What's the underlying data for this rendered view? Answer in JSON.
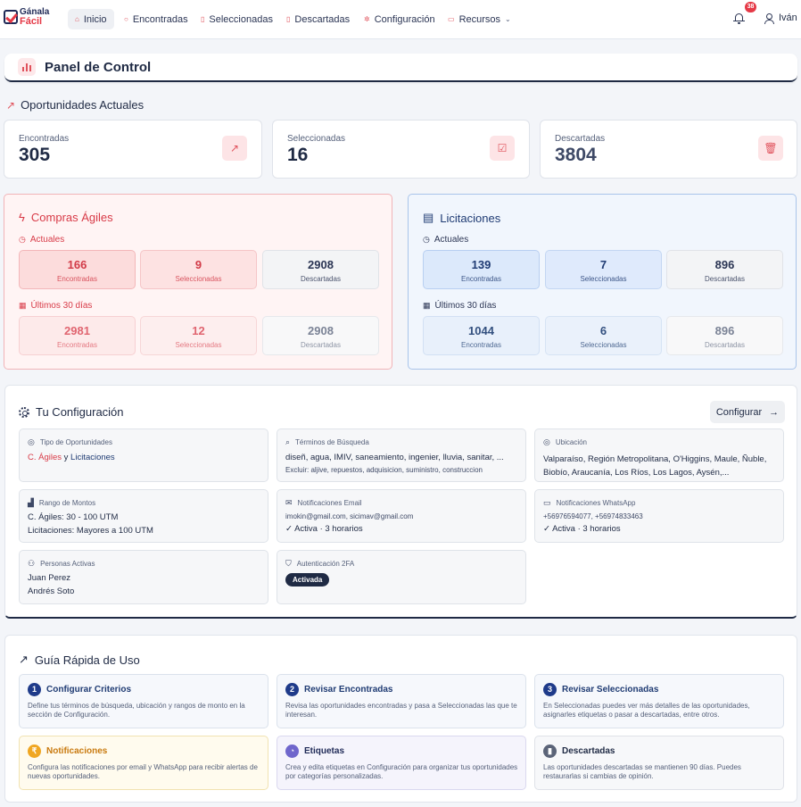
{
  "nav": {
    "logo_line1": "Gánala",
    "logo_line2": "Fácil",
    "items": [
      {
        "label": "Inicio",
        "icon": "home-icon"
      },
      {
        "label": "Encontradas",
        "icon": "search-icon"
      },
      {
        "label": "Seleccionadas",
        "icon": "clipboard-icon"
      },
      {
        "label": "Descartadas",
        "icon": "trash-icon"
      },
      {
        "label": "Configuración",
        "icon": "gear-icon"
      },
      {
        "label": "Recursos",
        "icon": "book-icon"
      }
    ],
    "notification_count": "38",
    "user_name": "Iván"
  },
  "header": {
    "title": "Panel de Control"
  },
  "current": {
    "title": "Oportunidades Actuales",
    "cards": [
      {
        "label": "Encontradas",
        "value": "305"
      },
      {
        "label": "Seleccionadas",
        "value": "16"
      },
      {
        "label": "Descartadas",
        "value": "3804"
      }
    ]
  },
  "compras": {
    "title": "Compras Ágiles",
    "current_label": "Actuales",
    "last30_label": "Últimos 30 días",
    "current": [
      {
        "value": "166",
        "label": "Encontradas"
      },
      {
        "value": "9",
        "label": "Seleccionadas"
      },
      {
        "value": "2908",
        "label": "Descartadas"
      }
    ],
    "last30": [
      {
        "value": "2981",
        "label": "Encontradas"
      },
      {
        "value": "12",
        "label": "Seleccionadas"
      },
      {
        "value": "2908",
        "label": "Descartadas"
      }
    ]
  },
  "licitaciones": {
    "title": "Licitaciones",
    "current_label": "Actuales",
    "last30_label": "Últimos 30 días",
    "current": [
      {
        "value": "139",
        "label": "Encontradas"
      },
      {
        "value": "7",
        "label": "Seleccionadas"
      },
      {
        "value": "896",
        "label": "Descartadas"
      }
    ],
    "last30": [
      {
        "value": "1044",
        "label": "Encontradas"
      },
      {
        "value": "6",
        "label": "Seleccionadas"
      },
      {
        "value": "896",
        "label": "Descartadas"
      }
    ]
  },
  "config": {
    "title": "Tu Configuración",
    "button": "Configurar",
    "tipo": {
      "label": "Tipo de Oportunidades",
      "part1": "C. Ágiles",
      "joiner": " y ",
      "part2": "Licitaciones"
    },
    "terminos": {
      "label": "Términos de Búsqueda",
      "value": "diseñ, agua, IMIV, saneamiento, ingenier, lluvia, sanitar, ...",
      "exclude": "Excluir: aljive, repuestos, adquisicion, suministro, construccion"
    },
    "ubicacion": {
      "label": "Ubicación",
      "value": "Valparaíso, Región Metropolitana, O'Higgins, Maule, Ñuble, Biobío, Araucanía, Los Ríos, Los Lagos, Aysén,..."
    },
    "rango": {
      "label": "Rango de Montos",
      "line1": "C. Ágiles: 30 - 100 UTM",
      "line2": "Licitaciones: Mayores a 100 UTM"
    },
    "email": {
      "label": "Notificaciones Email",
      "value": "imokin@gmail.com, sicimav@gmail.com",
      "status": "✓ Activa · 3 horarios"
    },
    "whatsapp": {
      "label": "Notificaciones WhatsApp",
      "value": "+56976594077, +56974833463",
      "status": "✓ Activa · 3 horarios"
    },
    "personas": {
      "label": "Personas Activas",
      "people": [
        "Juan Perez",
        "Andrés Soto"
      ]
    },
    "auth": {
      "label": "Autenticación 2FA",
      "status": "Activada"
    }
  },
  "guide": {
    "title": "Guía Rápida de Uso",
    "cards": [
      {
        "num": "1",
        "title": "Configurar Criterios",
        "desc": "Define tus términos de búsqueda, ubicación y rangos de monto en la sección de Configuración."
      },
      {
        "num": "2",
        "title": "Revisar Encontradas",
        "desc": "Revisa las oportunidades encontradas y pasa a Seleccionadas las que te interesan."
      },
      {
        "num": "3",
        "title": "Revisar Seleccionadas",
        "desc": "En Seleccionadas puedes ver más detalles de las oportunidades, asignarles etiquetas o pasar a descartadas, entre otros."
      },
      {
        "num": "₹",
        "title": "Notificaciones",
        "desc": "Configura las notificaciones por email y WhatsApp para recibir alertas de nuevas oportunidades."
      },
      {
        "num": "◔",
        "title": "Etiquetas",
        "desc": "Crea y edita etiquetas en Configuración para organizar tus oportunidades por categorías personalizadas."
      },
      {
        "num": "▮",
        "title": "Descartadas",
        "desc": "Las oportunidades descartadas se mantienen 90 días. Puedes restaurarlas si cambias de opinión."
      }
    ]
  }
}
